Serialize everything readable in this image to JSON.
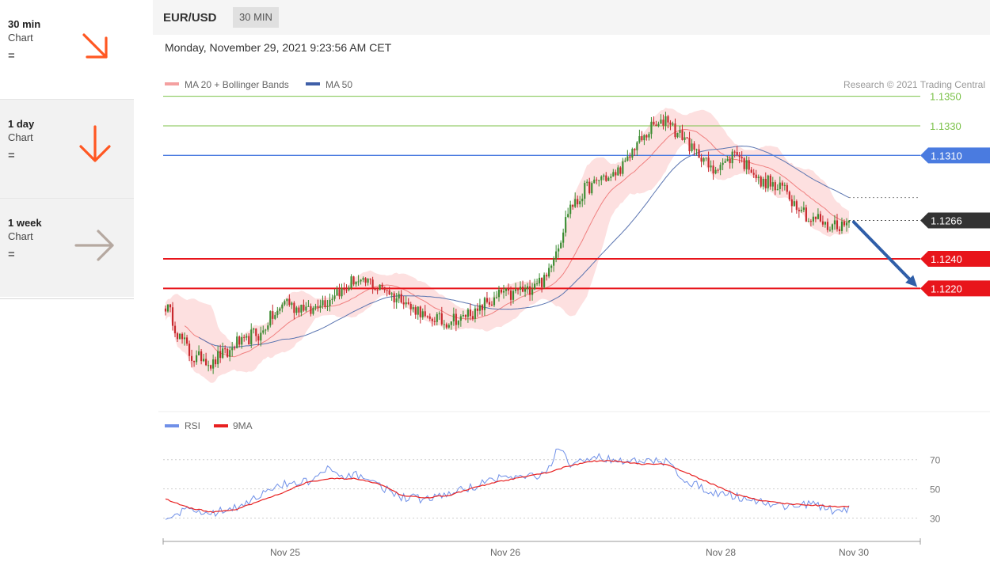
{
  "sidebar": {
    "items": [
      {
        "title": "30 min",
        "subtitle": "Chart",
        "status": "=",
        "direction": "down-right",
        "arrow_color": "#ff5722"
      },
      {
        "title": "1 day",
        "subtitle": "Chart",
        "status": "=",
        "direction": "down",
        "arrow_color": "#ff5722"
      },
      {
        "title": "1 week",
        "subtitle": "Chart",
        "status": "=",
        "direction": "right",
        "arrow_color": "#b5a8a0"
      }
    ]
  },
  "header": {
    "pair": "EUR/USD",
    "timeframe": "30 MIN"
  },
  "datetime": "Monday, November 29, 2021 9:23:56 AM CET",
  "legend": {
    "ma20": "MA 20 + Bollinger Bands",
    "ma50": "MA 50",
    "credit": "Research © 2021 Trading Central"
  },
  "rsi_legend": {
    "rsi": "RSI",
    "ma9": "9MA"
  },
  "colors": {
    "resistance": "#7cc24a",
    "pivot": "#4a7be0",
    "support": "#e8151b",
    "current": "#333333",
    "bb_fill": "#fde0e0",
    "ma20": "#f08080",
    "ma50": "#5a74b0",
    "bull": "#3c8c32",
    "bear": "#c8282d",
    "rsi": "#7090e8",
    "rsi_ma": "#e82020"
  },
  "chart_data": {
    "type": "candlestick",
    "title": "EUR/USD 30 MIN",
    "ylim": [
      1.1135,
      1.136
    ],
    "x_ticks": [
      "Nov 25",
      "Nov 26",
      "Nov 28",
      "Nov 30"
    ],
    "levels": [
      {
        "value": 1.135,
        "label": "1.1350",
        "kind": "resistance"
      },
      {
        "value": 1.133,
        "label": "1.1330",
        "kind": "resistance"
      },
      {
        "value": 1.131,
        "label": "1.1310",
        "kind": "pivot"
      },
      {
        "value": 1.1266,
        "label": "1.1266",
        "kind": "current"
      },
      {
        "value": 1.124,
        "label": "1.1240",
        "kind": "support"
      },
      {
        "value": 1.122,
        "label": "1.1220",
        "kind": "support"
      }
    ],
    "forecast": {
      "from": 1.1266,
      "to": 1.122,
      "direction": "down"
    },
    "price_keypoints": [
      [
        0,
        1.1208
      ],
      [
        10,
        1.1175
      ],
      [
        20,
        1.117
      ],
      [
        30,
        1.1182
      ],
      [
        40,
        1.119
      ],
      [
        50,
        1.1211
      ],
      [
        60,
        1.1205
      ],
      [
        70,
        1.1215
      ],
      [
        80,
        1.1225
      ],
      [
        90,
        1.1221
      ],
      [
        100,
        1.1212
      ],
      [
        110,
        1.1199
      ],
      [
        120,
        1.1198
      ],
      [
        130,
        1.1204
      ],
      [
        140,
        1.1215
      ],
      [
        150,
        1.1218
      ],
      [
        160,
        1.1228
      ],
      [
        170,
        1.1275
      ],
      [
        180,
        1.1292
      ],
      [
        190,
        1.1298
      ],
      [
        200,
        1.1322
      ],
      [
        210,
        1.1335
      ],
      [
        220,
        1.1317
      ],
      [
        230,
        1.13
      ],
      [
        240,
        1.1312
      ],
      [
        250,
        1.1292
      ],
      [
        260,
        1.1287
      ],
      [
        270,
        1.1268
      ],
      [
        280,
        1.1262
      ],
      [
        287,
        1.1265
      ]
    ],
    "rsi": {
      "ylim": [
        20,
        85
      ],
      "ticks": [
        70,
        50,
        30
      ],
      "rsi_keypoints": [
        [
          0,
          31
        ],
        [
          10,
          36
        ],
        [
          20,
          33
        ],
        [
          30,
          38
        ],
        [
          40,
          46
        ],
        [
          50,
          53
        ],
        [
          60,
          55
        ],
        [
          68,
          63
        ],
        [
          75,
          57
        ],
        [
          82,
          60
        ],
        [
          90,
          52
        ],
        [
          100,
          44
        ],
        [
          110,
          43
        ],
        [
          120,
          47
        ],
        [
          130,
          52
        ],
        [
          140,
          58
        ],
        [
          150,
          58
        ],
        [
          160,
          60
        ],
        [
          165,
          78
        ],
        [
          170,
          66
        ],
        [
          180,
          72
        ],
        [
          190,
          70
        ],
        [
          200,
          68
        ],
        [
          210,
          69
        ],
        [
          220,
          54
        ],
        [
          230,
          48
        ],
        [
          240,
          45
        ],
        [
          250,
          41
        ],
        [
          260,
          38
        ],
        [
          270,
          40
        ],
        [
          280,
          35
        ],
        [
          287,
          36
        ]
      ],
      "ma9_keypoints": [
        [
          0,
          43
        ],
        [
          10,
          37
        ],
        [
          20,
          34
        ],
        [
          30,
          36
        ],
        [
          40,
          42
        ],
        [
          50,
          48
        ],
        [
          60,
          55
        ],
        [
          70,
          57
        ],
        [
          80,
          57
        ],
        [
          90,
          53
        ],
        [
          100,
          45
        ],
        [
          110,
          44
        ],
        [
          120,
          46
        ],
        [
          130,
          51
        ],
        [
          140,
          55
        ],
        [
          150,
          58
        ],
        [
          160,
          61
        ],
        [
          170,
          66
        ],
        [
          180,
          69
        ],
        [
          190,
          69
        ],
        [
          200,
          67
        ],
        [
          210,
          67
        ],
        [
          220,
          60
        ],
        [
          230,
          53
        ],
        [
          240,
          46
        ],
        [
          250,
          42
        ],
        [
          260,
          40
        ],
        [
          270,
          39
        ],
        [
          280,
          38
        ],
        [
          287,
          38
        ]
      ]
    }
  }
}
